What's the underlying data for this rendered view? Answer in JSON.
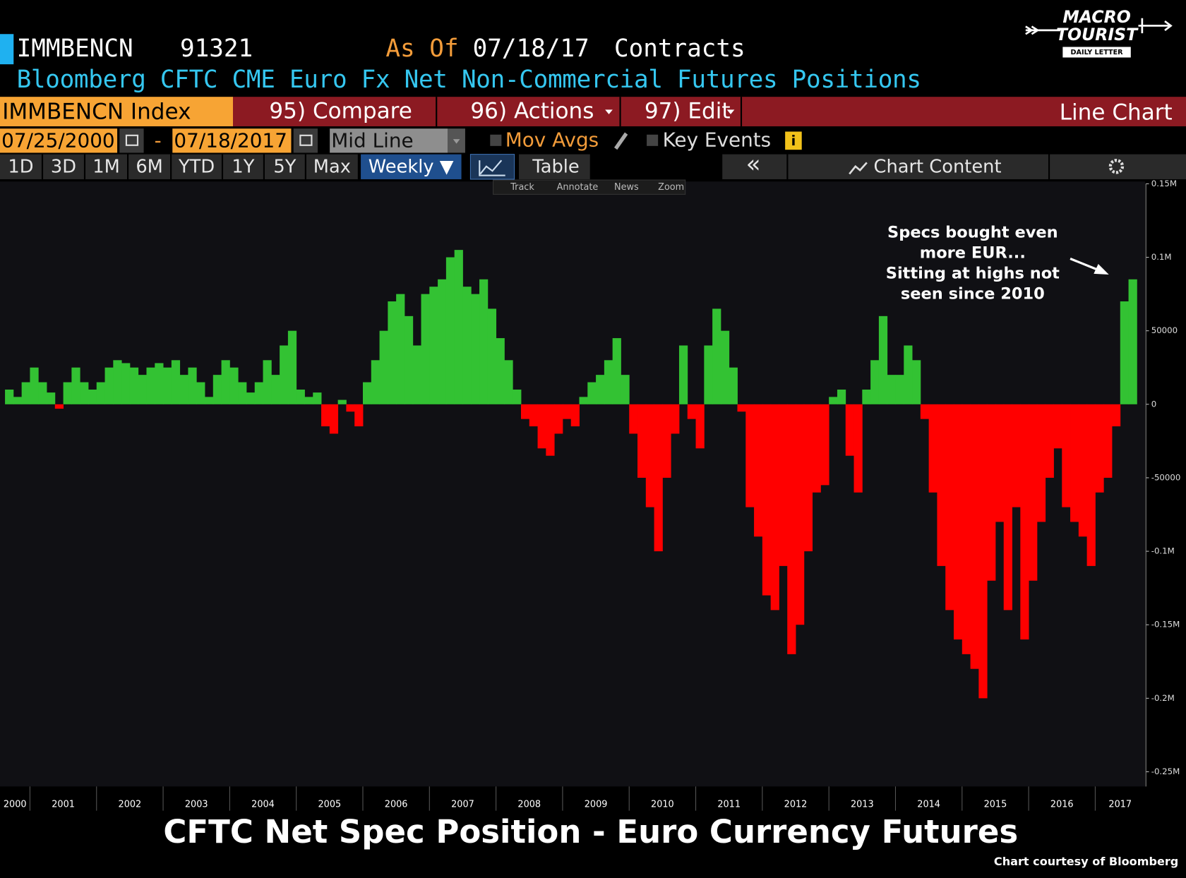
{
  "terminal": {
    "ticker": "IMMBENCN",
    "number": "91321",
    "as_of_label": "As Of",
    "as_of_date": "07/18/17",
    "units": "Contracts",
    "description": "Bloomberg CFTC CME Euro Fx Net Non-Commercial Futures Positions",
    "security": "IMMBENCN Index",
    "menu": [
      "95) Compare",
      "96) Actions",
      "97) Edit"
    ],
    "view": "Line Chart",
    "start_date": "07/25/2000",
    "date_separator": "-",
    "end_date": "07/18/2017",
    "line_mode": "Mid Line",
    "options": [
      "Mov Avgs",
      "Key Events"
    ],
    "ranges": [
      "1D",
      "3D",
      "1M",
      "6M",
      "YTD",
      "1Y",
      "5Y",
      "Max"
    ],
    "frequency": "Weekly ▼",
    "table": "Table",
    "back": "«",
    "chart_content": "Chart Content",
    "tools": [
      "Track",
      "Annotate",
      "News",
      "Zoom"
    ]
  },
  "logo": {
    "line1": "MACRO",
    "line2": "TOURIST",
    "tagline": "DAILY LETTER"
  },
  "chart_data": {
    "type": "bar",
    "title": "CFTC Net Spec Position - Euro Currency Futures",
    "credit": "Chart courtesy of Bloomberg",
    "annotation": [
      "Specs bought even",
      "more EUR...",
      "Sitting at highs not",
      "seen since 2010"
    ],
    "positive_color": "#33c233",
    "negative_color": "#ff0000",
    "x": [
      2000.625,
      2000.75,
      2000.875,
      2001,
      2001.125,
      2001.25,
      2001.375,
      2001.5,
      2001.625,
      2001.75,
      2001.875,
      2002,
      2002.125,
      2002.25,
      2002.375,
      2002.5,
      2002.625,
      2002.75,
      2002.875,
      2003,
      2003.125,
      2003.25,
      2003.375,
      2003.5,
      2003.625,
      2003.75,
      2003.875,
      2004,
      2004.125,
      2004.25,
      2004.375,
      2004.5,
      2004.625,
      2004.75,
      2004.875,
      2005,
      2005.125,
      2005.25,
      2005.375,
      2005.5,
      2005.625,
      2005.75,
      2005.875,
      2006,
      2006.125,
      2006.25,
      2006.375,
      2006.5,
      2006.625,
      2006.75,
      2006.875,
      2007,
      2007.125,
      2007.25,
      2007.375,
      2007.5,
      2007.625,
      2007.75,
      2007.875,
      2008,
      2008.125,
      2008.25,
      2008.375,
      2008.5,
      2008.625,
      2008.75,
      2008.875,
      2009,
      2009.125,
      2009.25,
      2009.375,
      2009.5,
      2009.625,
      2009.75,
      2009.875,
      2010,
      2010.125,
      2010.25,
      2010.375,
      2010.5,
      2010.625,
      2010.75,
      2010.875,
      2011,
      2011.125,
      2011.25,
      2011.375,
      2011.5,
      2011.625,
      2011.75,
      2011.875,
      2012,
      2012.125,
      2012.25,
      2012.375,
      2012.5,
      2012.625,
      2012.75,
      2012.875,
      2013,
      2013.125,
      2013.25,
      2013.375,
      2013.5,
      2013.625,
      2013.75,
      2013.875,
      2014,
      2014.125,
      2014.25,
      2014.375,
      2014.5,
      2014.625,
      2014.75,
      2014.875,
      2015,
      2015.125,
      2015.25,
      2015.375,
      2015.5,
      2015.625,
      2015.75,
      2015.875,
      2016,
      2016.125,
      2016.25,
      2016.375,
      2016.5,
      2016.625,
      2016.75,
      2016.875,
      2017,
      2017.125,
      2017.25,
      2017.375,
      2017.5
    ],
    "values": [
      10000,
      5000,
      15000,
      25000,
      15000,
      8000,
      -3000,
      15000,
      25000,
      15000,
      10000,
      15000,
      25000,
      30000,
      28000,
      25000,
      20000,
      25000,
      28000,
      25000,
      30000,
      20000,
      25000,
      15000,
      5000,
      20000,
      30000,
      25000,
      15000,
      8000,
      15000,
      30000,
      20000,
      40000,
      50000,
      10000,
      5000,
      8000,
      -15000,
      -20000,
      3000,
      -5000,
      -15000,
      15000,
      30000,
      50000,
      70000,
      75000,
      60000,
      40000,
      75000,
      80000,
      85000,
      100000,
      105000,
      80000,
      75000,
      85000,
      65000,
      45000,
      30000,
      10000,
      -10000,
      -15000,
      -30000,
      -35000,
      -20000,
      -10000,
      -15000,
      5000,
      15000,
      20000,
      30000,
      45000,
      20000,
      -20000,
      -50000,
      -70000,
      -100000,
      -50000,
      -20000,
      40000,
      -10000,
      -30000,
      40000,
      65000,
      50000,
      25000,
      -5000,
      -70000,
      -90000,
      -130000,
      -140000,
      -110000,
      -170000,
      -150000,
      -100000,
      -60000,
      -55000,
      5000,
      10000,
      -35000,
      -60000,
      10000,
      30000,
      60000,
      20000,
      20000,
      40000,
      30000,
      -10000,
      -60000,
      -110000,
      -140000,
      -160000,
      -170000,
      -180000,
      -200000,
      -120000,
      -80000,
      -140000,
      -70000,
      -160000,
      -120000,
      -80000,
      -50000,
      -30000,
      -70000,
      -80000,
      -90000,
      -110000,
      -60000,
      -50000,
      -15000,
      70000,
      85000
    ],
    "xlim": [
      2000.55,
      2017.75
    ],
    "xticks": [
      2000,
      2001,
      2002,
      2003,
      2004,
      2005,
      2006,
      2007,
      2008,
      2009,
      2010,
      2011,
      2012,
      2013,
      2014,
      2015,
      2016,
      2017
    ],
    "ylim": [
      -260000,
      150000
    ],
    "yticks": [
      {
        "value": 150000,
        "label": "0.15M"
      },
      {
        "value": 100000,
        "label": "0.1M"
      },
      50000,
      0,
      -50000,
      {
        "value": -100000,
        "label": "-0.1M"
      },
      {
        "value": -150000,
        "label": "-0.15M"
      },
      {
        "value": -200000,
        "label": "-0.2M"
      },
      {
        "value": -250000,
        "label": "-0.25M"
      }
    ]
  }
}
